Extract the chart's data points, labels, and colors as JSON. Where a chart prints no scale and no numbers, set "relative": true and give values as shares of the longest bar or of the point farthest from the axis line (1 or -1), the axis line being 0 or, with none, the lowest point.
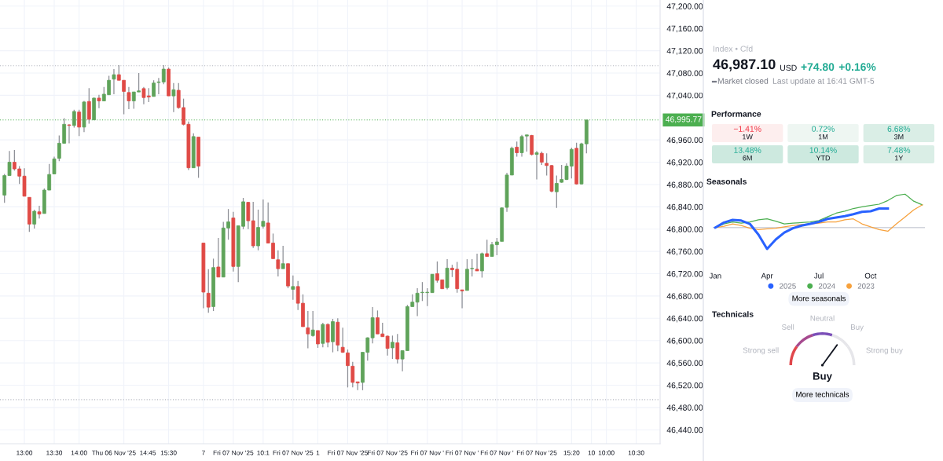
{
  "chart_data": [
    {
      "type": "candlestick",
      "categories": [
        null,
        null,
        null,
        null,
        "13:00",
        null,
        null,
        null,
        null,
        null,
        "13:30",
        null,
        null,
        null,
        null,
        "14:00",
        null,
        null,
        null,
        null,
        null,
        null,
        null,
        null,
        "Thu 06 Nov '25  14:45",
        null,
        null,
        null,
        null,
        null,
        null,
        null,
        null,
        "15:30",
        null,
        null,
        null,
        null,
        null,
        null,
        "7",
        null,
        null,
        null,
        null,
        null,
        "Fri 07 Nov '25",
        null,
        null,
        null,
        null,
        null,
        "10:1",
        null,
        null,
        null,
        null,
        null,
        "Fri 07 Nov '25",
        null,
        null,
        null,
        null,
        "1",
        null,
        null,
        null,
        null,
        null,
        "Fri 07 Nov '25",
        null,
        null,
        null,
        null,
        null,
        null,
        null,
        "Fri 07 Nov '25",
        null,
        null,
        null,
        null,
        null,
        null,
        null,
        "Fri 07 Nov '",
        null,
        null,
        null,
        null,
        null,
        null,
        "Fri 07 Nov '",
        null,
        null,
        null,
        null,
        null,
        null,
        "Fri 07 Nov '",
        null,
        null,
        null,
        null,
        null,
        null,
        null,
        "Fri 07 Nov '25",
        null,
        null,
        null,
        null,
        null,
        null,
        "15:20",
        null,
        null,
        null,
        "10",
        null,
        null,
        "10:00",
        null,
        null,
        null,
        null,
        null,
        "10:30",
        null,
        null,
        null,
        null,
        null
      ],
      "ohlc": [
        [
          46861,
          46899,
          46847,
          46896
        ],
        [
          46896,
          46940,
          46896,
          46920
        ],
        [
          46920,
          46942,
          46905,
          46908
        ],
        [
          46908,
          46913,
          46881,
          46895
        ],
        [
          46895,
          46909,
          46859,
          46859
        ],
        [
          46857,
          46857,
          46795,
          46809
        ],
        [
          46809,
          46835,
          46801,
          46832
        ],
        [
          46831,
          46842,
          46819,
          46827
        ],
        [
          46828,
          46873,
          46828,
          46870
        ],
        [
          46870,
          46917,
          46870,
          46898
        ],
        [
          46899,
          46930,
          46899,
          46926
        ],
        [
          46927,
          46968,
          46922,
          46954
        ],
        [
          46954,
          46999,
          46954,
          46988
        ],
        [
          46987,
          46988,
          46954,
          46986
        ],
        [
          46986,
          47014,
          46982,
          47011
        ],
        [
          47010,
          47014,
          46967,
          46983
        ],
        [
          46983,
          47030,
          46974,
          47028
        ],
        [
          47029,
          47053,
          46989,
          46997
        ],
        [
          46996,
          47036,
          46996,
          47035
        ],
        [
          47035,
          47041,
          47017,
          47030
        ],
        [
          47030,
          47055,
          47030,
          47042
        ],
        [
          47041,
          47075,
          47041,
          47067
        ],
        [
          47069,
          47087,
          47042,
          47077
        ],
        [
          47077,
          47094,
          47067,
          47067
        ],
        [
          47067,
          47067,
          47006,
          47047
        ],
        [
          47045,
          47055,
          47015,
          47030
        ],
        [
          47030,
          47046,
          47016,
          47046
        ],
        [
          47046,
          47080,
          47046,
          47048
        ],
        [
          47052,
          47055,
          47024,
          47036
        ],
        [
          47039,
          47053,
          47028,
          47037
        ],
        [
          47038,
          47067,
          47038,
          47062
        ],
        [
          47063,
          47071,
          47042,
          47064
        ],
        [
          47064,
          47094,
          47060,
          47087
        ],
        [
          47087,
          47090,
          47039,
          47039
        ],
        [
          47039,
          47062,
          47010,
          47050
        ],
        [
          47049,
          47062,
          47016,
          47018
        ],
        [
          47018,
          47034,
          46986,
          46988
        ],
        [
          46988,
          46993,
          46906,
          46910
        ],
        [
          46910,
          46972,
          46910,
          46966
        ],
        [
          46965,
          46965,
          46892,
          46913
        ],
        [
          46775,
          46775,
          46658,
          46687
        ],
        [
          46685,
          46728,
          46650,
          46660
        ],
        [
          46661,
          46747,
          46653,
          46731
        ],
        [
          46732,
          46784,
          46714,
          46714
        ],
        [
          46714,
          46813,
          46714,
          46802
        ],
        [
          46802,
          46836,
          46781,
          46813
        ],
        [
          46820,
          46831,
          46724,
          46733
        ],
        [
          46733,
          46806,
          46705,
          46806
        ],
        [
          46805,
          46856,
          46800,
          46849
        ],
        [
          46848,
          46849,
          46800,
          46815
        ],
        [
          46815,
          46849,
          46766,
          46770
        ],
        [
          46770,
          46835,
          46762,
          46803
        ],
        [
          46805,
          46853,
          46801,
          46814
        ],
        [
          46811,
          46848,
          46775,
          46775
        ],
        [
          46775,
          46792,
          46747,
          46747
        ],
        [
          46745,
          46762,
          46715,
          46729
        ],
        [
          46729,
          46770,
          46729,
          46738
        ],
        [
          46738,
          46738,
          46694,
          46698
        ],
        [
          46692,
          46717,
          46673,
          46697
        ],
        [
          46697,
          46707,
          46655,
          46667
        ],
        [
          46667,
          46683,
          46625,
          46625
        ],
        [
          46623,
          46653,
          46586,
          46612
        ],
        [
          46609,
          46653,
          46607,
          46619
        ],
        [
          46618,
          46618,
          46587,
          46594
        ],
        [
          46595,
          46632,
          46588,
          46629
        ],
        [
          46629,
          46631,
          46588,
          46597
        ],
        [
          46598,
          46639,
          46579,
          46634
        ],
        [
          46633,
          46640,
          46581,
          46592
        ],
        [
          46588,
          46623,
          46578,
          46579
        ],
        [
          46578,
          46584,
          46516,
          46555
        ],
        [
          46554,
          46562,
          46516,
          46525
        ],
        [
          46526,
          46526,
          46511,
          46524
        ],
        [
          46525,
          46579,
          46511,
          46579
        ],
        [
          46579,
          46606,
          46564,
          46605
        ],
        [
          46605,
          46660,
          46595,
          46641
        ],
        [
          46641,
          46654,
          46612,
          46612
        ],
        [
          46612,
          46632,
          46607,
          46607
        ],
        [
          46608,
          46609,
          46573,
          46586
        ],
        [
          46587,
          46609,
          46567,
          46597
        ],
        [
          46596,
          46612,
          46559,
          46567
        ],
        [
          46567,
          46582,
          46545,
          46582
        ],
        [
          46582,
          46664,
          46582,
          46661
        ],
        [
          46661,
          46683,
          46661,
          46669
        ],
        [
          46669,
          46694,
          46644,
          46685
        ],
        [
          46686,
          46705,
          46671,
          46686
        ],
        [
          46686,
          46694,
          46662,
          46686
        ],
        [
          46686,
          46719,
          46686,
          46719
        ],
        [
          46720,
          46742,
          46704,
          46708
        ],
        [
          46709,
          46709,
          46693,
          46693
        ],
        [
          46695,
          46746,
          46692,
          46730
        ],
        [
          46730,
          46736,
          46714,
          46727
        ],
        [
          46728,
          46741,
          46686,
          46693
        ],
        [
          46691,
          46691,
          46658,
          46689
        ],
        [
          46690,
          46746,
          46690,
          46728
        ],
        [
          46729,
          46746,
          46715,
          46729
        ],
        [
          46728,
          46756,
          46725,
          46725
        ],
        [
          46725,
          46758,
          46713,
          46756
        ],
        [
          46756,
          46781,
          46751,
          46751
        ],
        [
          46751,
          46777,
          46751,
          46772
        ],
        [
          46772,
          46784,
          46753,
          46777
        ],
        [
          46778,
          46839,
          46778,
          46838
        ],
        [
          46839,
          46901,
          46831,
          46897
        ],
        [
          46897,
          46948,
          46897,
          46945
        ],
        [
          46947,
          46957,
          46930,
          46937
        ],
        [
          46937,
          46969,
          46930,
          46966
        ],
        [
          46967,
          46969,
          46939,
          46969
        ],
        [
          46968,
          46969,
          46932,
          46934
        ],
        [
          46934,
          46940,
          46889,
          46937
        ],
        [
          46936,
          46939,
          46915,
          46920
        ],
        [
          46918,
          46936,
          46896,
          46914
        ],
        [
          46914,
          46915,
          46866,
          46868
        ],
        [
          46867,
          46896,
          46838,
          46882
        ],
        [
          46884,
          46915,
          46883,
          46889
        ],
        [
          46889,
          46918,
          46888,
          46913
        ],
        [
          46913,
          46946,
          46891,
          46943
        ],
        [
          46945,
          46955,
          46880,
          46881
        ],
        [
          46881,
          46955,
          46880,
          46953
        ],
        [
          46953,
          46995.77,
          46936,
          46995.77
        ],
        null,
        null,
        null,
        null,
        null,
        null,
        null,
        null,
        null,
        null,
        null,
        null,
        null,
        null,
        null
      ],
      "ylim": [
        46415,
        47211
      ],
      "yticks": [
        {
          "value": 46440,
          "label": "46,440.00"
        },
        {
          "value": 46480,
          "label": "46,480.00"
        },
        {
          "value": 46520,
          "label": "46,520.00"
        },
        {
          "value": 46560,
          "label": "46,560.00"
        },
        {
          "value": 46600,
          "label": "46,600.00"
        },
        {
          "value": 46640,
          "label": "46,640.00"
        },
        {
          "value": 46680,
          "label": "46,680.00"
        },
        {
          "value": 46720,
          "label": "46,720.00"
        },
        {
          "value": 46760,
          "label": "46,760.00"
        },
        {
          "value": 46800,
          "label": "46,800.00"
        },
        {
          "value": 46840,
          "label": "46,840.00"
        },
        {
          "value": 46880,
          "label": "46,880.00"
        },
        {
          "value": 46920,
          "label": "46,920.00"
        },
        {
          "value": 46960,
          "label": "46,960.00"
        },
        {
          "value": 47040,
          "label": "47,040.00"
        },
        {
          "value": 47080,
          "label": "47,080.00"
        },
        {
          "value": 47120,
          "label": "47,120.00"
        },
        {
          "value": 47160,
          "label": "47,160.00"
        },
        {
          "value": 47200,
          "label": "47,200.00"
        }
      ],
      "grid": true,
      "ref_lines": [
        {
          "axis": "y",
          "value": 46995.77,
          "label": "46,995.77",
          "color": "#4caf50",
          "line_style": "dotted"
        },
        {
          "axis": "y",
          "value": 47093,
          "color": "#b2b5be",
          "line_style": "dotted"
        },
        {
          "axis": "y",
          "value": 46494,
          "color": "#b2b5be",
          "line_style": "dotted"
        }
      ]
    },
    {
      "type": "other",
      "annotations": [
        "Index • Cfd",
        "46,987.10",
        "USD",
        "+74.80",
        "+0.16%",
        "Market closed",
        "Last update at 16:41 GMT-5"
      ]
    },
    {
      "type": "other",
      "title": "Performance",
      "categories": [
        "1W",
        "1M",
        "3M",
        "6M",
        "YTD",
        "1Y"
      ],
      "values": [
        -1.41,
        0.72,
        6.68,
        13.48,
        10.14,
        7.48
      ],
      "value_labels": [
        "−1.41%",
        "0.72%",
        "6.68%",
        "13.48%",
        "10.14%",
        "7.48%"
      ],
      "colors": [
        "#fdeeee",
        "#eef6f2",
        "#daeee6",
        "#cde9df",
        "#cde9df",
        "#daeee6"
      ]
    },
    {
      "type": "line",
      "title": "Seasonals",
      "relative": true,
      "legend": "bottom",
      "categories": [
        "Jan",
        null,
        null,
        null,
        null,
        null,
        "Apr",
        null,
        null,
        null,
        null,
        null,
        "Jul",
        null,
        null,
        null,
        null,
        null,
        "Oct",
        null,
        null,
        null,
        null,
        null,
        null
      ],
      "series": [
        {
          "name": "2025",
          "color": "#2962ff",
          "values": [
            0,
            0.15,
            0.23,
            0.21,
            0.11,
            -0.21,
            -0.64,
            -0.36,
            -0.15,
            -0.02,
            0.06,
            0.11,
            0.17,
            0.26,
            0.3,
            0.34,
            0.4,
            0.47,
            0.49,
            0.57,
            0.57,
            null,
            null,
            null,
            null
          ]
        },
        {
          "name": "2024",
          "color": "#4caf50",
          "values": [
            0,
            0.11,
            0.17,
            0.13,
            0.17,
            0.23,
            0.26,
            0.19,
            0.11,
            0.13,
            0.15,
            0.17,
            0.21,
            0.32,
            0.43,
            0.49,
            0.57,
            0.62,
            0.66,
            0.7,
            0.81,
            0.96,
            1.0,
            0.79,
            0.68
          ]
        },
        {
          "name": "2023",
          "color": "#f7a13c",
          "values": [
            0,
            0.04,
            0.11,
            0.06,
            -0.02,
            -0.06,
            -0.04,
            -0.02,
            0.02,
            0.06,
            0.09,
            0.11,
            0.13,
            0.17,
            0.17,
            0.23,
            0.26,
            0.11,
            0.02,
            -0.06,
            -0.11,
            0.11,
            0.32,
            0.53,
            0.68
          ]
        }
      ],
      "annotations": [
        "More seasonals"
      ]
    },
    {
      "type": "donut",
      "title": "Technicals",
      "categories": [
        "Strong sell",
        "Sell",
        "Neutral",
        "Buy",
        "Strong buy"
      ],
      "values": [
        20,
        20,
        20,
        20,
        20
      ],
      "colors": [
        "#e0474c",
        "#a64a8f",
        "#7b4fb8",
        "#e6e6ea",
        "#e6e6ea"
      ],
      "needle": "Buy",
      "annotations": [
        "More technicals"
      ]
    }
  ]
}
